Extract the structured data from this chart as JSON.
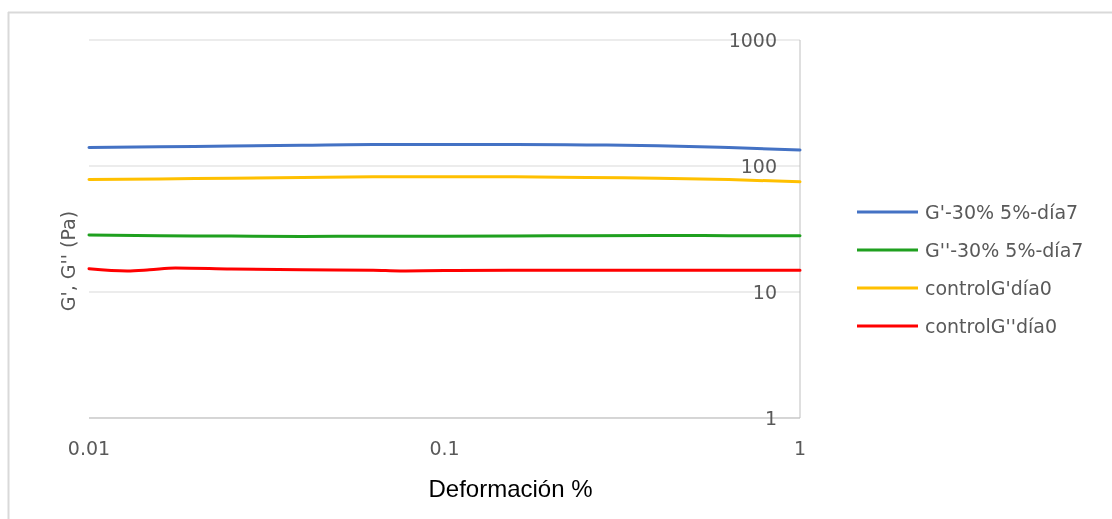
{
  "chart_data": {
    "type": "line",
    "xlabel": "Deformación %",
    "ylabel": "G', G'' (Pa)",
    "log": "xy",
    "xlim": [
      0.01,
      1
    ],
    "ylim": [
      1,
      1000
    ],
    "xticks": [
      0.01,
      0.1,
      1
    ],
    "yticks": [
      1,
      10,
      100,
      1000
    ],
    "grid": "y",
    "legend": "right",
    "marker": "none",
    "line_style": "solid",
    "x": [
      0.01,
      0.0158,
      0.0251,
      0.0398,
      0.063,
      0.1,
      0.158,
      0.251,
      0.398,
      0.63,
      1
    ],
    "series": [
      {
        "name": "G'-30% 5%-día7",
        "color": "#4472c4",
        "values": [
          140,
          142,
          144,
          146,
          148,
          148,
          148,
          147,
          145,
          140,
          134
        ]
      },
      {
        "name": "G''-30% 5%-día7",
        "color": "#1fa01f",
        "values": [
          28.3,
          27.9,
          27.8,
          27.6,
          27.7,
          27.7,
          27.8,
          28,
          28.1,
          28,
          27.9
        ]
      },
      {
        "name": "controlG'día0",
        "color": "#ffc000",
        "values": [
          78,
          79,
          80,
          81,
          82,
          82,
          82,
          81,
          80,
          78,
          75
        ]
      },
      {
        "name": "controlG''día0",
        "color": "#ff0000",
        "x": [
          0.01,
          0.0128,
          0.0148,
          0.0175,
          0.0251,
          0.0398,
          0.063,
          0.075,
          0.1,
          0.158,
          0.251,
          0.398,
          0.63,
          1
        ],
        "values": [
          15.3,
          14.7,
          15,
          15.5,
          15.2,
          15,
          14.9,
          14.7,
          14.8,
          14.9,
          14.9,
          14.9,
          14.9,
          14.9
        ]
      }
    ]
  }
}
